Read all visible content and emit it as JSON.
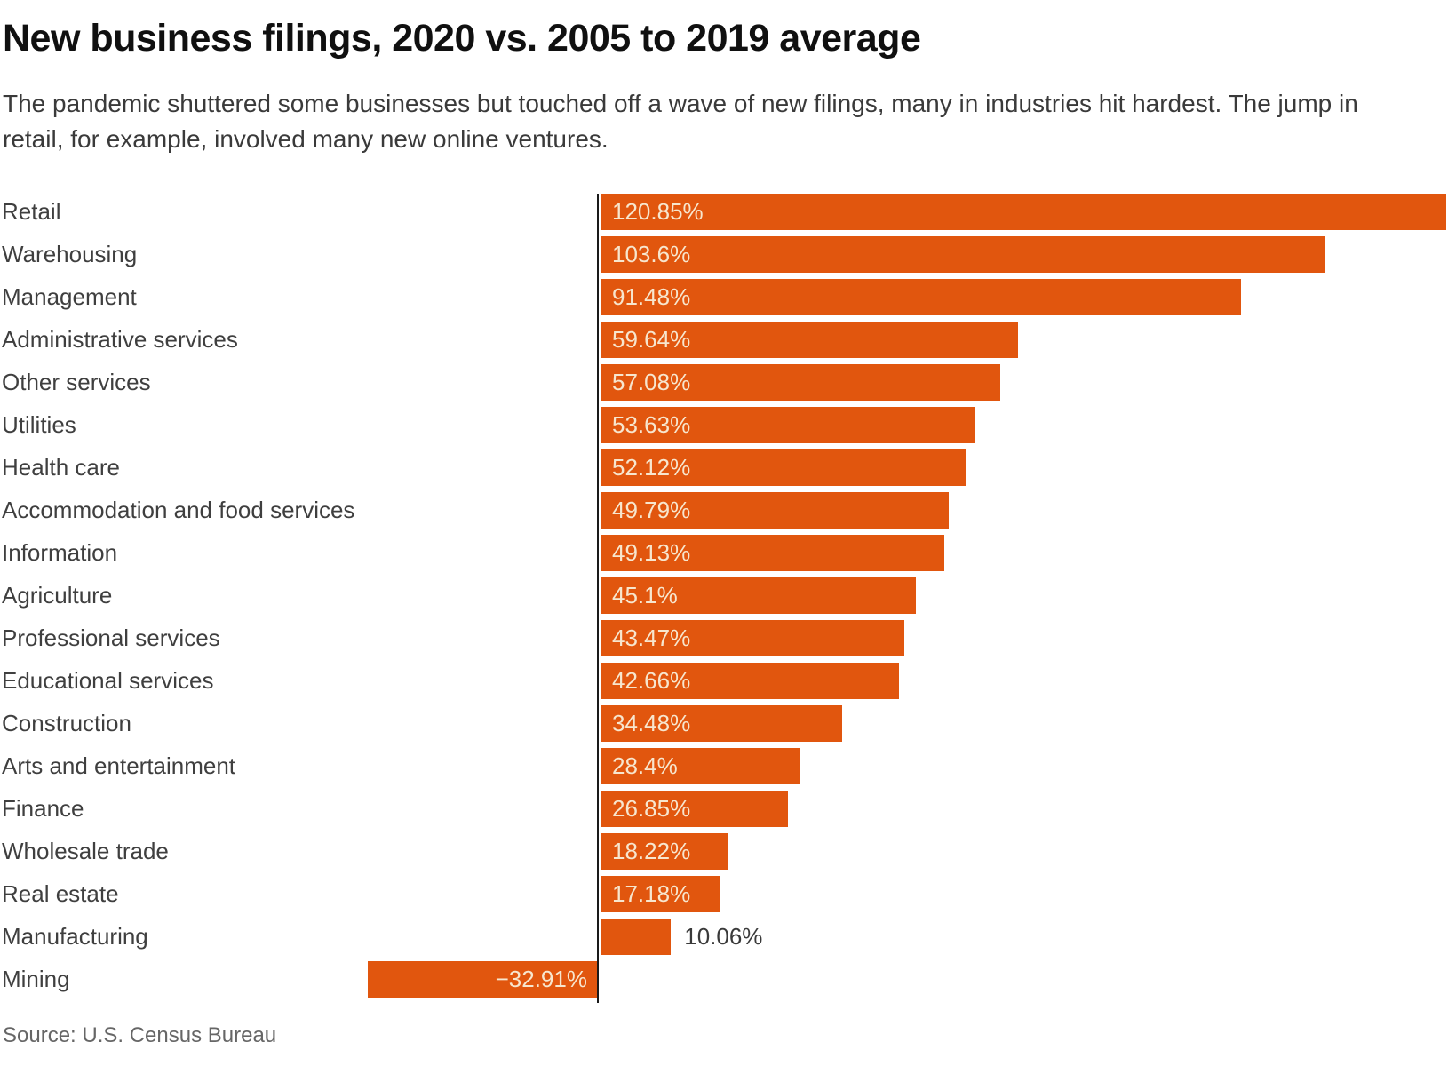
{
  "header": {
    "title": "New business filings, 2020 vs. 2005 to 2019 average",
    "subtitle_lines": [
      "The pandemic shuttered some businesses but touched off a wave of new filings, many in industries hit hardest. The jump in",
      "retail, for example, involved many new online ventures."
    ]
  },
  "chart_data": {
    "type": "bar",
    "orientation": "horizontal",
    "title": "New business filings, 2020 vs. 2005 to 2019 average",
    "xlabel": "",
    "ylabel": "",
    "xlim": [
      -40,
      125
    ],
    "grid": false,
    "legend": false,
    "categories": [
      "Retail",
      "Warehousing",
      "Management",
      "Administrative services",
      "Other services",
      "Utilities",
      "Health care",
      "Accommodation and food services",
      "Information",
      "Agriculture",
      "Professional services",
      "Educational services",
      "Construction",
      "Arts and entertainment",
      "Finance",
      "Wholesale trade",
      "Real estate",
      "Manufacturing",
      "Mining"
    ],
    "values": [
      120.85,
      103.6,
      91.48,
      59.64,
      57.08,
      53.63,
      52.12,
      49.79,
      49.13,
      45.1,
      43.47,
      42.66,
      34.48,
      28.4,
      26.85,
      18.22,
      17.18,
      10.06,
      -32.91
    ],
    "value_labels": [
      "120.85%",
      "103.6%",
      "91.48%",
      "59.64%",
      "57.08%",
      "53.63%",
      "52.12%",
      "49.79%",
      "49.13%",
      "45.1%",
      "43.47%",
      "42.66%",
      "34.48%",
      "28.4%",
      "26.85%",
      "18.22%",
      "17.18%",
      "10.06%",
      "−32.91%"
    ],
    "colors": {
      "bar": "#E1560E",
      "inside_label": "#F7E6CE",
      "outside_label": "#3a3a3a",
      "axis": "#1a1a1a"
    }
  },
  "footer": {
    "source": "Source: U.S. Census Bureau"
  }
}
